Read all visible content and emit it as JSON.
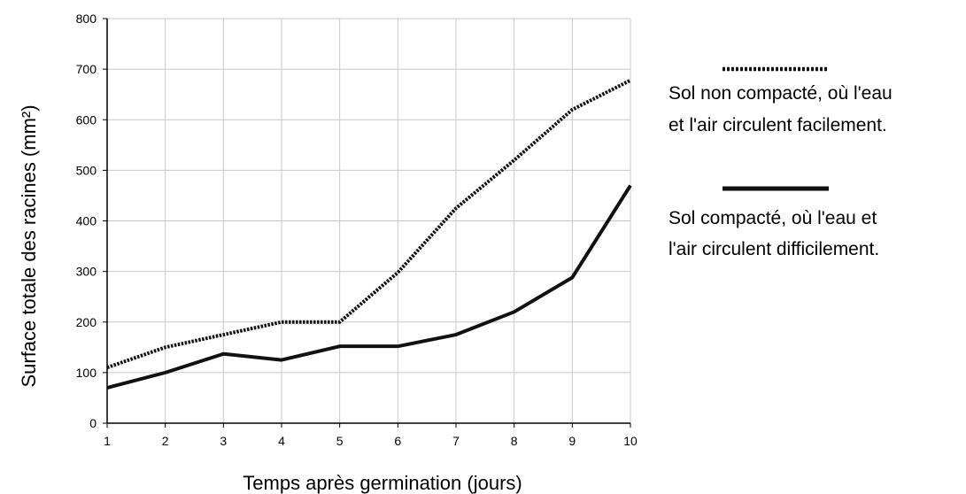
{
  "chart_data": {
    "type": "line",
    "x": [
      1,
      2,
      3,
      4,
      5,
      6,
      7,
      8,
      9,
      10
    ],
    "xlim": [
      1,
      10
    ],
    "ylim": [
      0,
      800
    ],
    "yticks": [
      0,
      100,
      200,
      300,
      400,
      500,
      600,
      700,
      800
    ],
    "xlabel": "Temps après germination (jours)",
    "ylabel": "Surface totale des racines (mm²)",
    "grid": true,
    "legend_position": "right",
    "series": [
      {
        "name_lines": [
          "Sol non compacté, où l'eau",
          "et l'air circulent facilement."
        ],
        "style": "dotted",
        "values": [
          110,
          150,
          175,
          200,
          200,
          298,
          425,
          520,
          620,
          678
        ]
      },
      {
        "name_lines": [
          "Sol compacté, où l'eau et",
          "l'air circulent difficilement."
        ],
        "style": "solid",
        "values": [
          70,
          100,
          137,
          125,
          152,
          152,
          175,
          220,
          288,
          470
        ]
      }
    ]
  }
}
